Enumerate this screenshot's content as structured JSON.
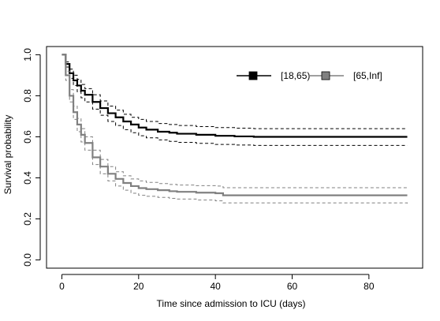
{
  "chart_data": {
    "type": "line",
    "title": "",
    "xlabel": "Time since admission to ICU (days)",
    "ylabel": "Survival probability",
    "xlim": [
      -4,
      94
    ],
    "ylim": [
      -0.04,
      1.04
    ],
    "x_ticks": [
      0,
      20,
      40,
      60,
      80
    ],
    "y_ticks": [
      0.0,
      0.2,
      0.4,
      0.6,
      0.8,
      1.0
    ],
    "x_tick_labels": [
      "0",
      "20",
      "40",
      "60",
      "80"
    ],
    "y_tick_labels": [
      "0.0",
      "0.2",
      "0.4",
      "0.6",
      "0.8",
      "1.0"
    ],
    "grid": false,
    "legend_position": "top-right",
    "series": [
      {
        "name": "[18,65)",
        "color": "#000000",
        "marker": "square",
        "step_kaplan_meier": true,
        "x": [
          0,
          1,
          2,
          3,
          4,
          5,
          6,
          8,
          10,
          12,
          14,
          16,
          18,
          20,
          22,
          25,
          28,
          30,
          35,
          40,
          45,
          50,
          90
        ],
        "y": [
          1.0,
          0.955,
          0.91,
          0.875,
          0.85,
          0.825,
          0.805,
          0.77,
          0.74,
          0.715,
          0.695,
          0.675,
          0.66,
          0.645,
          0.635,
          0.625,
          0.62,
          0.615,
          0.61,
          0.605,
          0.602,
          0.6,
          0.6
        ],
        "ci_upper": [
          1.0,
          0.965,
          0.93,
          0.9,
          0.88,
          0.855,
          0.835,
          0.805,
          0.775,
          0.75,
          0.73,
          0.71,
          0.695,
          0.685,
          0.675,
          0.665,
          0.66,
          0.655,
          0.65,
          0.645,
          0.642,
          0.64,
          0.64
        ],
        "ci_lower": [
          1.0,
          0.94,
          0.885,
          0.85,
          0.82,
          0.79,
          0.77,
          0.735,
          0.705,
          0.675,
          0.655,
          0.635,
          0.62,
          0.605,
          0.595,
          0.585,
          0.578,
          0.573,
          0.568,
          0.563,
          0.56,
          0.558,
          0.558
        ]
      },
      {
        "name": "[65,Inf]",
        "color": "#808080",
        "marker": "square",
        "step_kaplan_meier": true,
        "x": [
          0,
          1,
          2,
          3,
          4,
          5,
          6,
          8,
          10,
          12,
          14,
          16,
          18,
          20,
          22,
          25,
          28,
          30,
          35,
          40,
          42,
          50,
          60,
          70,
          90
        ],
        "y": [
          1.0,
          0.9,
          0.8,
          0.72,
          0.66,
          0.61,
          0.57,
          0.5,
          0.455,
          0.42,
          0.395,
          0.375,
          0.36,
          0.35,
          0.345,
          0.34,
          0.335,
          0.332,
          0.328,
          0.325,
          0.315,
          0.315,
          0.315,
          0.315,
          0.315
        ],
        "ci_upper": [
          1.0,
          0.92,
          0.83,
          0.75,
          0.69,
          0.64,
          0.6,
          0.535,
          0.49,
          0.455,
          0.43,
          0.41,
          0.395,
          0.385,
          0.378,
          0.372,
          0.368,
          0.365,
          0.362,
          0.36,
          0.352,
          0.352,
          0.352,
          0.352,
          0.352
        ],
        "ci_lower": [
          1.0,
          0.875,
          0.77,
          0.685,
          0.625,
          0.575,
          0.535,
          0.465,
          0.42,
          0.385,
          0.36,
          0.34,
          0.325,
          0.315,
          0.31,
          0.305,
          0.3,
          0.297,
          0.292,
          0.288,
          0.278,
          0.278,
          0.278,
          0.278,
          0.275
        ]
      }
    ]
  }
}
